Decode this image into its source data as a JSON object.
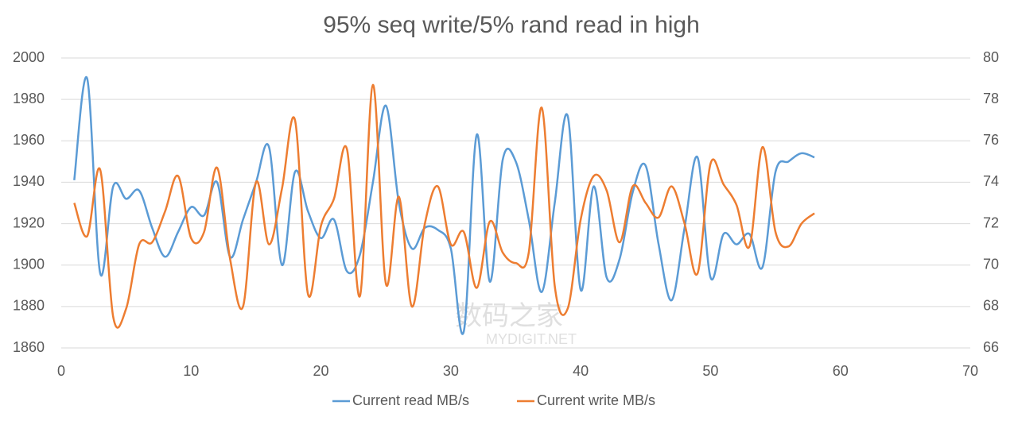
{
  "chart_data": {
    "type": "line",
    "title": "95% seq write/5% rand read in high",
    "x": [
      1,
      2,
      3,
      4,
      5,
      6,
      7,
      8,
      9,
      10,
      11,
      12,
      13,
      14,
      15,
      16,
      17,
      18,
      19,
      20,
      21,
      22,
      23,
      24,
      25,
      26,
      27,
      28,
      29,
      30,
      31,
      32,
      33,
      34,
      35,
      36,
      37,
      38,
      39,
      40,
      41,
      42,
      43,
      44,
      45,
      46,
      47,
      48,
      49,
      50,
      51,
      52,
      53,
      54,
      55,
      56,
      57,
      58
    ],
    "series": [
      {
        "name": "Current read MB/s",
        "color": "#5b9bd5",
        "axis": "y",
        "values": [
          1941,
          1990,
          1896,
          1938,
          1932,
          1936,
          1918,
          1904,
          1916,
          1928,
          1924,
          1940,
          1904,
          1922,
          1940,
          1957,
          1900,
          1945,
          1926,
          1913,
          1922,
          1897,
          1905,
          1940,
          1977,
          1930,
          1908,
          1918,
          1917,
          1908,
          1868,
          1963,
          1892,
          1951,
          1950,
          1922,
          1887,
          1930,
          1972,
          1888,
          1938,
          1894,
          1903,
          1935,
          1948,
          1910,
          1883,
          1918,
          1952,
          1894,
          1915,
          1910,
          1915,
          1899,
          1945,
          1950,
          1954,
          1952
        ]
      },
      {
        "name": "Current write MB/s",
        "color": "#ed7d31",
        "axis": "y2",
        "values": [
          73.0,
          71.4,
          74.6,
          67.5,
          67.9,
          71.0,
          71.1,
          72.6,
          74.3,
          71.3,
          71.6,
          74.7,
          70.3,
          68.0,
          74.0,
          71.0,
          73.7,
          77.0,
          68.6,
          71.9,
          73.2,
          75.6,
          68.5,
          78.7,
          69.1,
          73.3,
          68.0,
          72.0,
          73.8,
          71.0,
          71.6,
          68.9,
          72.1,
          70.6,
          70.1,
          70.6,
          77.6,
          69.0,
          67.9,
          72.2,
          74.3,
          73.6,
          71.1,
          73.8,
          73.0,
          72.3,
          73.8,
          72.0,
          69.6,
          74.9,
          73.9,
          72.9,
          70.9,
          75.7,
          71.6,
          70.9,
          72.0,
          72.5
        ]
      }
    ],
    "xlim": [
      0,
      70
    ],
    "xticks": [
      0,
      10,
      20,
      30,
      40,
      50,
      60,
      70
    ],
    "ylim": [
      1860,
      2000
    ],
    "yticks": [
      1860,
      1880,
      1900,
      1920,
      1940,
      1960,
      1980,
      2000
    ],
    "y2lim": [
      66,
      80
    ],
    "y2ticks": [
      66,
      68,
      70,
      72,
      74,
      76,
      78,
      80
    ],
    "grid": true,
    "legend": "bottom",
    "smooth": true,
    "watermark": [
      "数码之家",
      "MYDIGIT.NET"
    ]
  }
}
